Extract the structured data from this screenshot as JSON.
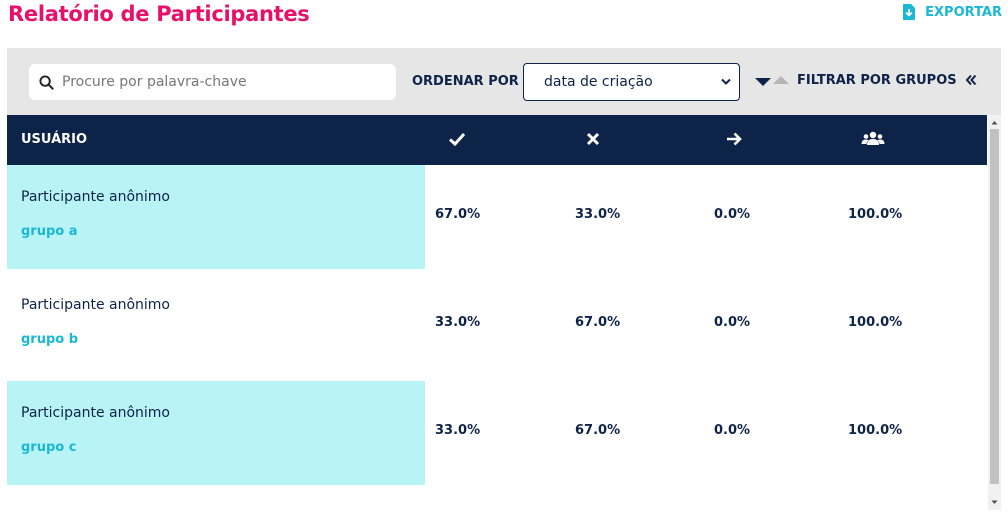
{
  "header": {
    "title": "Relatório de Participantes",
    "export_label": "EXPORTAR"
  },
  "toolbar": {
    "search_placeholder": "Procure por palavra-chave",
    "order_label": "ORDENAR POR",
    "order_value": "data de criação",
    "filter_label": "FILTRAR POR GRUPOS"
  },
  "table": {
    "columns": {
      "user": "USUÁRIO",
      "correct_icon": "check-icon",
      "wrong_icon": "x-icon",
      "skipped_icon": "arrow-right-icon",
      "participation_icon": "users-icon"
    },
    "rows": [
      {
        "name": "Participante anônimo",
        "group": "grupo a",
        "correct": "67.0%",
        "wrong": "33.0%",
        "skipped": "0.0%",
        "participation": "100.0%",
        "highlighted": true
      },
      {
        "name": "Participante anônimo",
        "group": "grupo b",
        "correct": "33.0%",
        "wrong": "67.0%",
        "skipped": "0.0%",
        "participation": "100.0%",
        "highlighted": false
      },
      {
        "name": "Participante anônimo",
        "group": "grupo c",
        "correct": "33.0%",
        "wrong": "67.0%",
        "skipped": "0.0%",
        "participation": "100.0%",
        "highlighted": true
      }
    ]
  },
  "colors": {
    "title": "#e8106a",
    "accent": "#1bb8d6",
    "header_bg": "#0d2347",
    "row_highlight": "#b8f3f5",
    "toolbar_bg": "#e6e6e6"
  }
}
